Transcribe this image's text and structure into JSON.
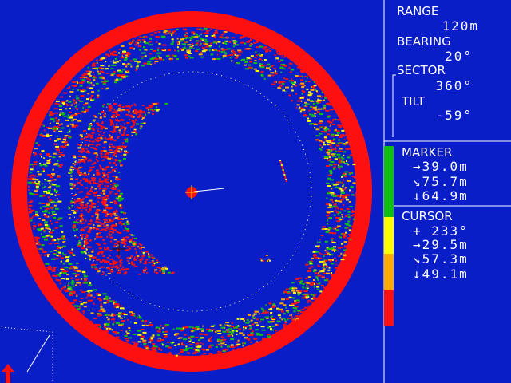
{
  "panel": {
    "range": {
      "label": "RANGE",
      "value": "120m"
    },
    "bearing": {
      "label": "BEARING",
      "value": "20°"
    },
    "sector": {
      "label": "SECTOR",
      "value": "360°"
    },
    "tilt": {
      "label": "TILT",
      "value": "-59°"
    },
    "marker": {
      "label": "MARKER",
      "lines": [
        "→39.0m",
        "↘75.7m",
        "↓64.9m"
      ]
    },
    "cursor": {
      "label": "CURSOR",
      "lines": [
        "+ 233°",
        "→29.5m",
        "↘57.3m",
        "↓49.1m"
      ]
    }
  }
}
